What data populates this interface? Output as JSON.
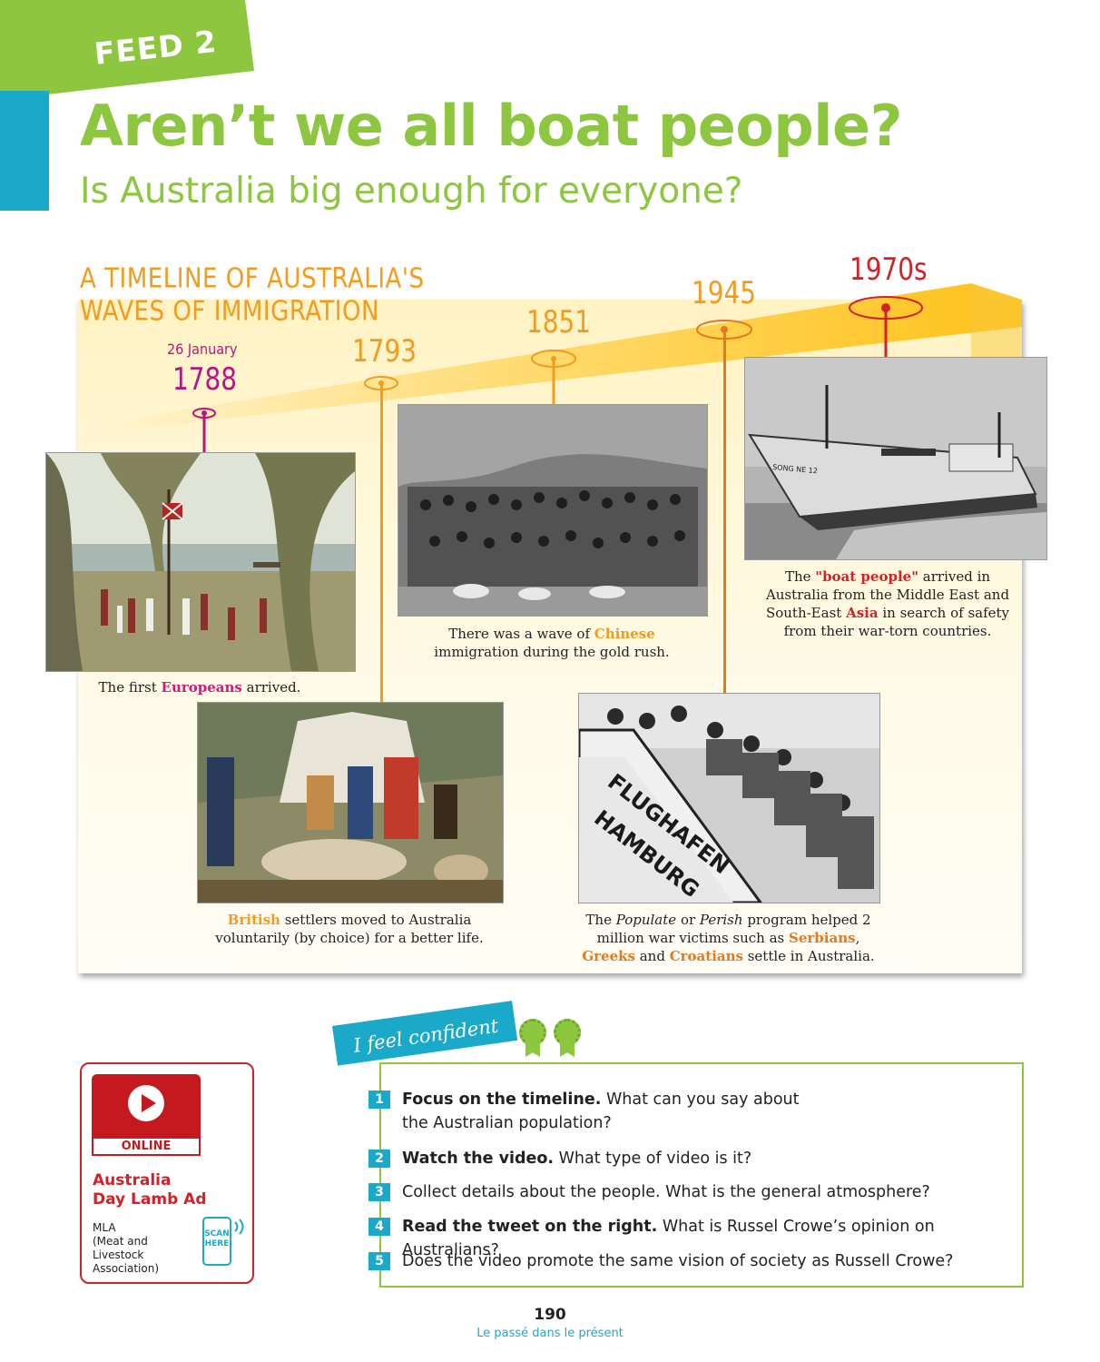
{
  "header": {
    "feed_label": "FEED 2",
    "title": "Aren’t we all boat people?",
    "subtitle": "Is Australia big enough for everyone?"
  },
  "timeline": {
    "heading": "A TIMELINE OF AUSTRALIA'S WAVES OF IMMIGRATION",
    "events": [
      {
        "date": "26 January",
        "year": "1788",
        "color": "#b5177e",
        "caption_pre": "The first ",
        "caption_hl": "Europeans",
        "caption_post": " arrived."
      },
      {
        "year": "1793",
        "color": "#f39b1c",
        "caption_hl": "British",
        "caption_post": " settlers moved to Australia voluntarily (by choice) for a better life."
      },
      {
        "year": "1851",
        "color": "#f39b1c",
        "caption_pre": "There was a wave of ",
        "caption_hl": "Chinese",
        "caption_post": " immigration during the gold rush."
      },
      {
        "year": "1945",
        "color": "#f39b1c",
        "caption_pre": "The ",
        "caption_it1": "Populate",
        "caption_mid1": " or ",
        "caption_it2": "Perish",
        "caption_mid2": " program helped 2 million war victims such as ",
        "caption_hl1": "Serbians",
        "caption_sep": ",",
        "caption_hl2": "Greeks",
        "caption_and": " and ",
        "caption_hl3": "Croatians",
        "caption_post": " settle in Australia."
      },
      {
        "year": "1970s",
        "color": "#d42027",
        "caption_pre": "The ",
        "caption_hl1": "\"boat people\"",
        "caption_mid": " arrived in Australia from the Middle East and South-East ",
        "caption_hl2": "Asia",
        "caption_post": " in search of safety from their war-torn countries."
      }
    ],
    "photo_text": {
      "airport_sign_1": "FLUGHAFEN",
      "airport_sign_2": "HAMBURG",
      "ship_name": "SONG NE 12"
    }
  },
  "online": {
    "badge": "ONLINE",
    "title_1": "Australia",
    "title_2": "Day Lamb Ad",
    "source_1": "MLA",
    "source_2": "(Meat and Livestock",
    "source_3": "Association)",
    "scan_1": "SCAN",
    "scan_2": "HERE"
  },
  "activity": {
    "ribbon": "I feel confident",
    "questions": [
      {
        "num": "1",
        "bold": "Focus on the timeline.",
        "text": " What can you say about the Australian population?"
      },
      {
        "num": "2",
        "bold": "Watch the video.",
        "text": " What type of video is it?"
      },
      {
        "num": "3",
        "bold": "",
        "text": "Collect details about the people. What is the general atmosphere?"
      },
      {
        "num": "4",
        "bold": "Read the tweet on the right.",
        "text": " What is Russel Crowe’s opinion on Australians?"
      },
      {
        "num": "5",
        "bold": "",
        "text": "Does the video promote the same vision of society as Russell Crowe?"
      }
    ]
  },
  "footer": {
    "page_number": "190",
    "chapter": "Le passé dans le présent"
  }
}
